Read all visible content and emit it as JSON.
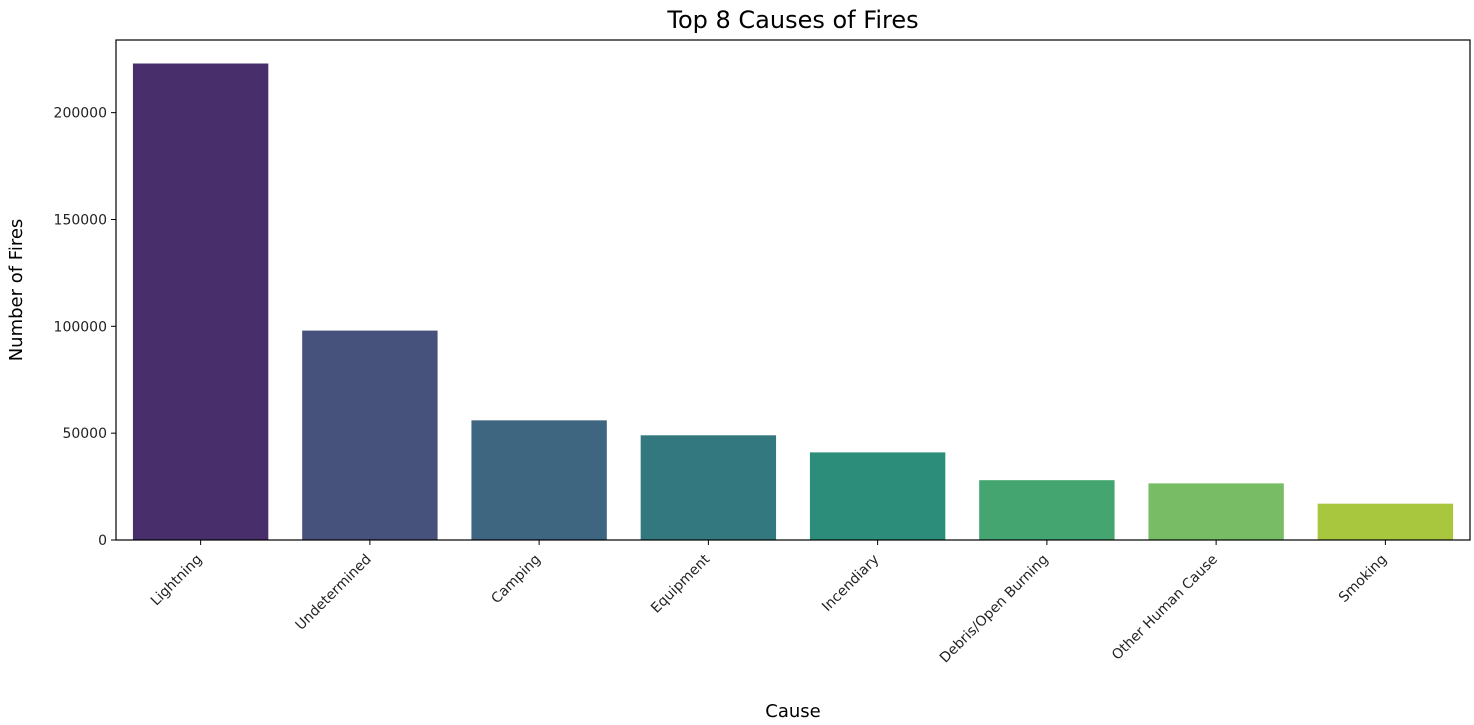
{
  "chart_data": {
    "type": "bar",
    "title": "Top 8 Causes of Fires",
    "xlabel": "Cause",
    "ylabel": "Number of Fires",
    "categories": [
      "Lightning",
      "Undetermined",
      "Camping",
      "Equipment",
      "Incendiary",
      "Debris/Open Burning",
      "Other Human Cause",
      "Smoking"
    ],
    "values": [
      223000,
      98000,
      56000,
      49000,
      41000,
      28000,
      26500,
      17000
    ],
    "ylim": [
      0,
      234000
    ],
    "yticks": [
      0,
      50000,
      100000,
      150000,
      200000
    ],
    "colors": [
      "#482f6b",
      "#46527c",
      "#3e6680",
      "#34787f",
      "#2c8e7a",
      "#45a571",
      "#78bd66",
      "#a8c63e"
    ],
    "grid": false,
    "legend": false
  }
}
